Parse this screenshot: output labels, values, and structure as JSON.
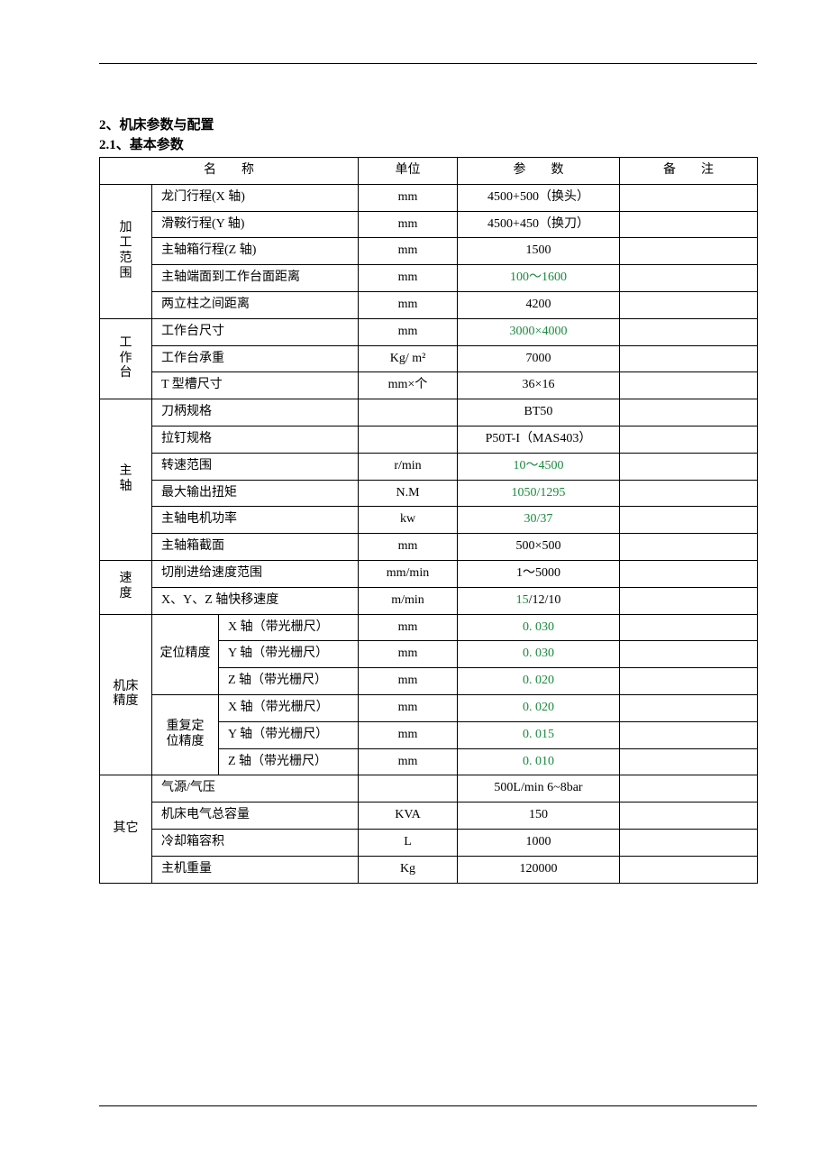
{
  "headings": {
    "section2": "2、机床参数与配置",
    "section21": "2.1、基本参数"
  },
  "header": {
    "name": "名　　称",
    "unit": "单位",
    "param": "参　　数",
    "note": "备　　注"
  },
  "groups": {
    "range": "加工范围",
    "table": "工作台",
    "spindle": "主轴",
    "speed": "速度",
    "precision": "机床精度",
    "other": "其它",
    "pos": "定位精度",
    "repeat": "重复定位精度"
  },
  "r": {
    "x_travel": {
      "n": "龙门行程(X 轴)",
      "u": "mm",
      "p": "4500+500（换头）"
    },
    "y_travel": {
      "n": "滑鞍行程(Y 轴)",
      "u": "mm",
      "p": "4500+450（换刀）"
    },
    "z_travel": {
      "n": "主轴箱行程(Z 轴)",
      "u": "mm",
      "p": "1500"
    },
    "face_dist": {
      "n": "主轴端面到工作台面距离",
      "u": "mm",
      "p": "100～1600"
    },
    "col_dist": {
      "n": "两立柱之间距离",
      "u": "mm",
      "p": "4200"
    },
    "tab_size": {
      "n": "工作台尺寸",
      "u": "mm",
      "p": "3000×4000"
    },
    "tab_load": {
      "n": "工作台承重",
      "u": "Kg/ m²",
      "p": "7000"
    },
    "t_slot": {
      "n": "T 型槽尺寸",
      "u": "mm×个",
      "p": "36×16"
    },
    "tool": {
      "n": "刀柄规格",
      "u": "",
      "p": "BT50"
    },
    "pull": {
      "n": "拉钉规格",
      "u": "",
      "p": "P50T-I（MAS403）"
    },
    "rpm": {
      "n": "转速范围",
      "u": "r/min",
      "p": "10～4500"
    },
    "torque": {
      "n": "最大输出扭矩",
      "u": "N.M",
      "p": "1050/1295"
    },
    "power": {
      "n": "主轴电机功率",
      "u": "kw",
      "p": "30/37"
    },
    "cross": {
      "n": "主轴箱截面",
      "u": "mm",
      "p": "500×500"
    },
    "feed": {
      "n": "切削进给速度范围",
      "u": "mm/min",
      "p": "1～5000"
    },
    "rapid": {
      "n": "X、Y、Z 轴快移速度",
      "u": "m/min",
      "p_g": "15",
      "p_rest": "/12/10"
    },
    "px": {
      "n": "X 轴（带光栅尺）",
      "u": "mm",
      "p": "0. 030"
    },
    "py": {
      "n": "Y 轴（带光栅尺）",
      "u": "mm",
      "p": "0. 030"
    },
    "pz": {
      "n": "Z 轴（带光栅尺）",
      "u": "mm",
      "p": "0. 020"
    },
    "rx": {
      "n": "X 轴（带光栅尺）",
      "u": "mm",
      "p": "0. 020"
    },
    "ry": {
      "n": "Y 轴（带光栅尺）",
      "u": "mm",
      "p": "0. 015"
    },
    "rz": {
      "n": "Z 轴（带光栅尺）",
      "u": "mm",
      "p": "0. 010"
    },
    "air": {
      "n": "气源/气压",
      "u": "",
      "p": "500L/min 6~8bar"
    },
    "elec": {
      "n": "机床电气总容量",
      "u": "KVA",
      "p": "150"
    },
    "cool": {
      "n": "冷却箱容积",
      "u": "L",
      "p": "1000"
    },
    "weight": {
      "n": "主机重量",
      "u": "Kg",
      "p": "120000"
    }
  }
}
